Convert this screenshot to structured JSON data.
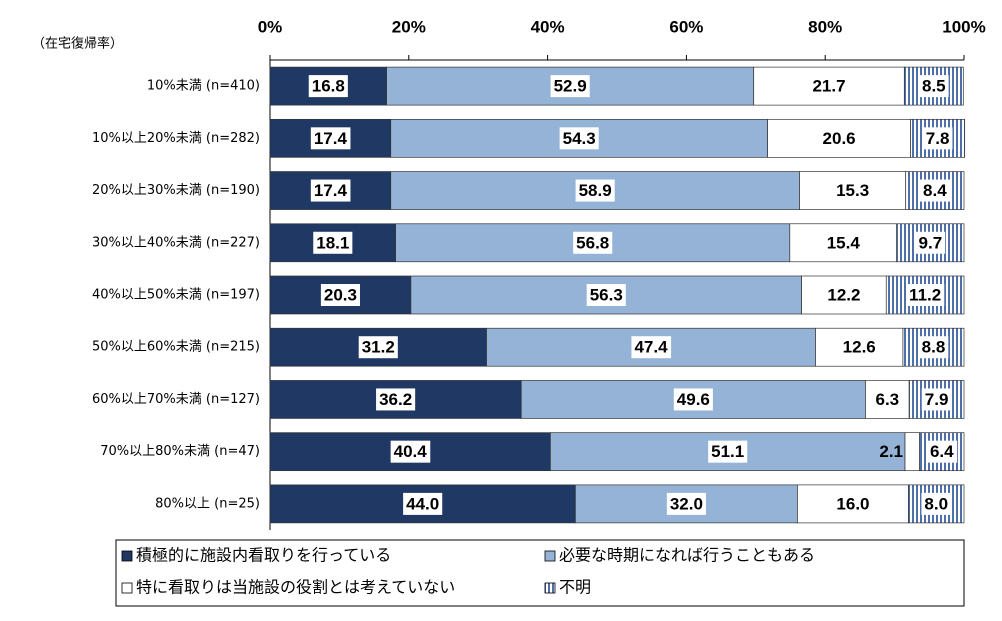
{
  "chart_data": {
    "type": "stacked-bar-horizontal",
    "y_axis_label": "（在宅復帰率）",
    "categories": [
      "10%未満 (n=410)",
      "10%以上20%未満 (n=282)",
      "20%以上30%未満 (n=190)",
      "30%以上40%未満 (n=227)",
      "40%以上50%未満 (n=197)",
      "50%以上60%未満 (n=215)",
      "60%以上70%未満 (n=127)",
      "70%以上80%未満 (n=47)",
      "80%以上 (n=25)"
    ],
    "series": [
      {
        "name": "積極的に施設内看取りを行っている",
        "color": "#1f3864",
        "values": [
          16.8,
          17.4,
          17.4,
          18.1,
          20.3,
          31.2,
          36.2,
          40.4,
          44
        ],
        "value_labels": [
          "16.8",
          "17.4",
          "17.4",
          "18.1",
          "20.3",
          "31.2",
          "36.2",
          "40.4",
          "44.0"
        ]
      },
      {
        "name": "必要な時期になれば行うこともある",
        "color": "#95b3d7",
        "values": [
          52.9,
          54.3,
          58.9,
          56.8,
          56.3,
          47.4,
          49.6,
          51.1,
          32
        ],
        "value_labels": [
          "52.9",
          "54.3",
          "58.9",
          "56.8",
          "56.3",
          "47.4",
          "49.6",
          "51.1",
          "32.0"
        ]
      },
      {
        "name": "特に看取りは当施設の役割とは考えていない",
        "color": "#ffffff",
        "values": [
          21.7,
          20.6,
          15.3,
          15.4,
          12.2,
          12.6,
          6.3,
          2.1,
          16
        ],
        "value_labels": [
          "21.7",
          "20.6",
          "15.3",
          "15.4",
          "12.2",
          "12.6",
          "6.3",
          "2.1",
          "16.0"
        ]
      },
      {
        "name": "不明",
        "color": "#4f6fa8",
        "pattern": "vertical-stripes",
        "values": [
          8.5,
          7.8,
          8.4,
          9.7,
          11.2,
          8.8,
          7.9,
          6.4,
          8
        ],
        "value_labels": [
          "8.5",
          "7.8",
          "8.4",
          "9.7",
          "11.2",
          "8.8",
          "7.9",
          "6.4",
          "8.0"
        ]
      }
    ],
    "xlim": [
      0,
      100
    ],
    "xticks": [
      {
        "value": 0,
        "label": "0%"
      },
      {
        "value": 20,
        "label": "20%"
      },
      {
        "value": 40,
        "label": "40%"
      },
      {
        "value": 60,
        "label": "60%"
      },
      {
        "value": 80,
        "label": "80%"
      },
      {
        "value": 100,
        "label": "100%"
      }
    ]
  }
}
